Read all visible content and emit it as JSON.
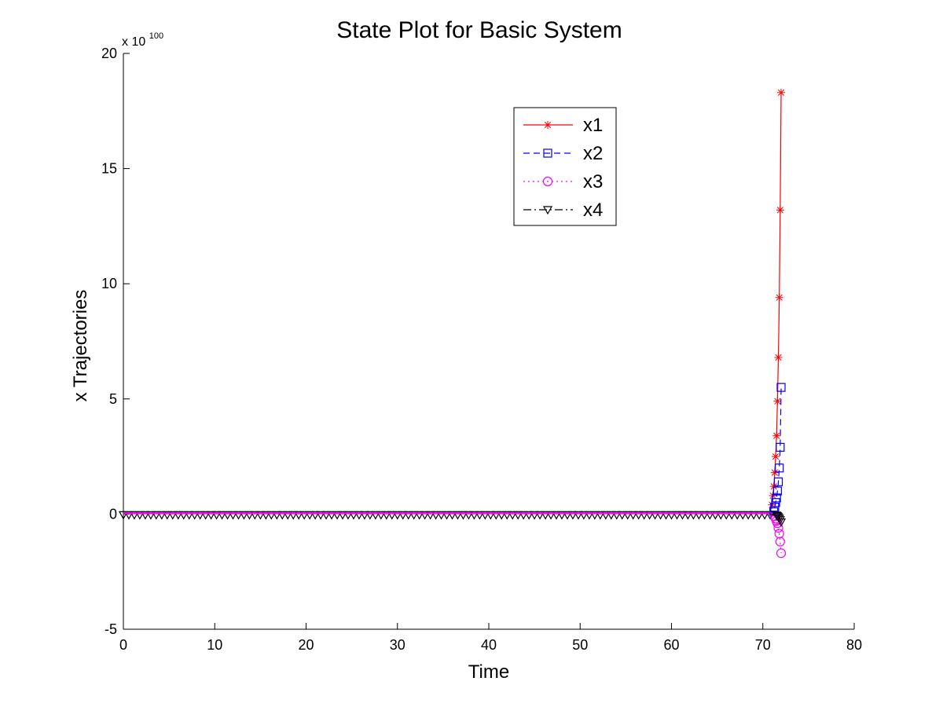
{
  "chart_data": {
    "type": "line",
    "title": "State Plot for Basic System",
    "xlabel": "Time",
    "ylabel": "x Trajectories",
    "y_multiplier_base": "x 10",
    "y_multiplier_exp": "100",
    "xlim": [
      0,
      80
    ],
    "ylim": [
      -5,
      20
    ],
    "xticks": [
      0,
      10,
      20,
      30,
      40,
      50,
      60,
      70,
      80
    ],
    "yticks": [
      -5,
      0,
      5,
      10,
      15,
      20
    ],
    "grid": false,
    "legend_position": "top-right",
    "series": [
      {
        "name": "x1",
        "color": "#ff0000",
        "line_style": "solid",
        "marker": "asterisk",
        "x": [
          71.0,
          71.1,
          71.2,
          71.3,
          71.4,
          71.5,
          71.6,
          71.7,
          71.8,
          71.9
        ],
        "y": [
          0.4,
          0.8,
          1.2,
          1.8,
          2.5,
          3.4,
          4.9,
          6.8,
          9.4,
          13.2
        ],
        "x_end": 72.0,
        "y_end": 18.3
      },
      {
        "name": "x2",
        "color": "#0000ff",
        "line_style": "dashed",
        "marker": "square",
        "x": [
          71.2,
          71.3,
          71.4,
          71.5,
          71.6,
          71.7,
          71.8,
          71.9
        ],
        "y": [
          0.1,
          0.3,
          0.5,
          0.7,
          1.0,
          1.4,
          2.0,
          2.9
        ],
        "x_end": 72.0,
        "y_end": 5.5
      },
      {
        "name": "x3",
        "color": "#ff00ff",
        "line_style": "dotted",
        "marker": "circle",
        "x": [
          71.3,
          71.4,
          71.5,
          71.6,
          71.7,
          71.8,
          71.9
        ],
        "y": [
          -0.1,
          -0.2,
          -0.3,
          -0.4,
          -0.6,
          -0.85,
          -1.2
        ],
        "x_end": 72.0,
        "y_end": -1.7
      },
      {
        "name": "x4",
        "color": "#000000",
        "line_style": "dashdot",
        "marker": "triangle-down",
        "x": [
          71.5,
          71.6,
          71.7,
          71.8,
          71.9
        ],
        "y": [
          -0.05,
          -0.08,
          -0.12,
          -0.18,
          -0.25
        ],
        "x_end": 72.0,
        "y_end": -0.35
      }
    ],
    "flat_segment": {
      "x_start": 0,
      "x_end": 71.0,
      "y": 0,
      "marker_step": 0.6
    }
  },
  "icons": {
    "x1_marker": "asterisk-icon",
    "x2_marker": "square-icon",
    "x3_marker": "circle-icon",
    "x4_marker": "triangle-down-icon"
  }
}
